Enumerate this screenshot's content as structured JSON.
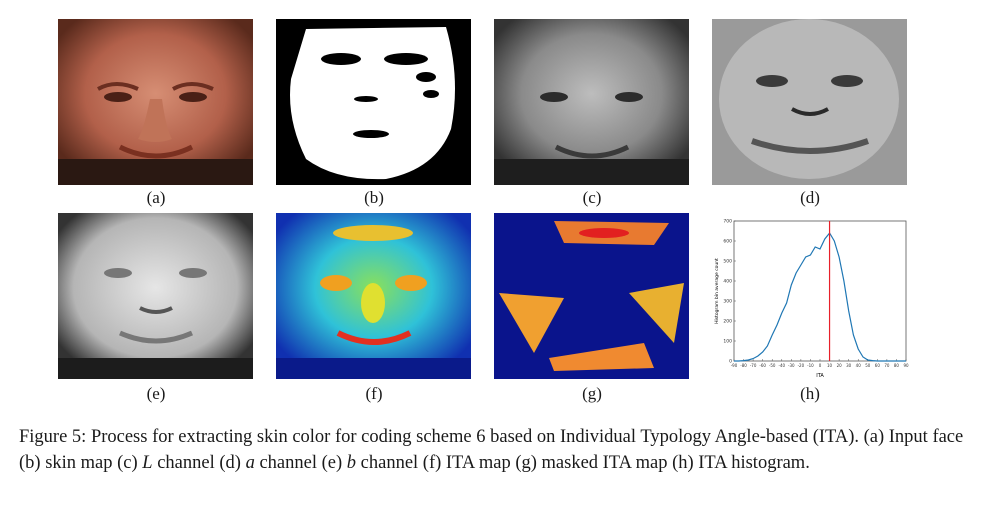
{
  "figure": {
    "panels": [
      {
        "label": "(a)",
        "content": "input-face-color"
      },
      {
        "label": "(b)",
        "content": "skin-map"
      },
      {
        "label": "(c)",
        "content": "l-channel"
      },
      {
        "label": "(d)",
        "content": "a-channel"
      },
      {
        "label": "(e)",
        "content": "b-channel"
      },
      {
        "label": "(f)",
        "content": "ita-map"
      },
      {
        "label": "(g)",
        "content": "masked-ita-map"
      },
      {
        "label": "(h)",
        "content": "ita-histogram"
      }
    ]
  },
  "chart_data": {
    "type": "line",
    "title": "",
    "xlabel": "ITA",
    "ylabel": "Histogram bin average count",
    "xlim": [
      -90,
      90
    ],
    "ylim": [
      0,
      700
    ],
    "xticks": [
      "-90",
      "-80",
      "-70",
      "-60",
      "-50",
      "-40",
      "-30",
      "-20",
      "-10",
      "0",
      "10",
      "20",
      "30",
      "40",
      "50",
      "60",
      "70",
      "80",
      "90"
    ],
    "yticks": [
      "0",
      "100",
      "200",
      "300",
      "400",
      "500",
      "600",
      "700"
    ],
    "grid": false,
    "line_color": "#1f77b4",
    "marker_color": "#e8202a",
    "marker_x": 10,
    "series": [
      {
        "x": [
          -90,
          -85,
          -80,
          -75,
          -70,
          -65,
          -60,
          -55,
          -50,
          -45,
          -40,
          -35,
          -30,
          -25,
          -20,
          -15,
          -10,
          -5,
          0,
          5,
          10,
          15,
          20,
          25,
          30,
          35,
          40,
          45,
          50,
          55,
          60,
          65,
          70,
          75,
          80,
          85,
          90
        ],
        "values": [
          0,
          0,
          2,
          5,
          12,
          25,
          45,
          75,
          130,
          180,
          240,
          290,
          380,
          440,
          480,
          520,
          530,
          570,
          560,
          610,
          640,
          600,
          520,
          400,
          250,
          130,
          60,
          20,
          5,
          2,
          0,
          0,
          0,
          0,
          0,
          0,
          0
        ]
      }
    ]
  },
  "caption": {
    "part1": "Figure 5:  Process for extracting skin color for coding scheme 6 based on Individual Typology Angle-based (ITA). (a) Input face (b) skin map (c) ",
    "var_l": "L",
    "part2": " channel (d) ",
    "var_a": "a",
    "part3": " channel (e) ",
    "var_b": "b",
    "part4": " channel (f) ITA map (g) masked ITA map (h) ITA histogram."
  }
}
